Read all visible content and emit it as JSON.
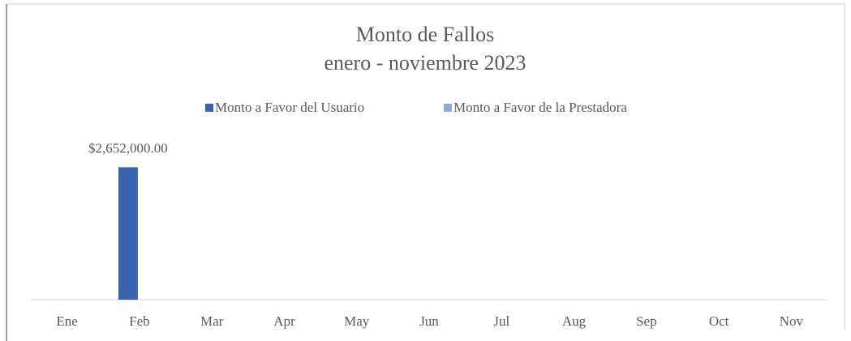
{
  "chart_data": {
    "type": "bar",
    "title": "Monto de Fallos",
    "subtitle": "enero - noviembre 2023",
    "categories": [
      "Ene",
      "Feb",
      "Mar",
      "Apr",
      "May",
      "Jun",
      "Jul",
      "Aug",
      "Sep",
      "Oct",
      "Nov"
    ],
    "series": [
      {
        "name": "Monto a Favor del Usuario",
        "color": "#3a62b0",
        "values": [
          null,
          2652000,
          null,
          null,
          null,
          null,
          null,
          null,
          null,
          null,
          null
        ],
        "value_labels": [
          null,
          "$2,652,000.00",
          null,
          null,
          null,
          null,
          null,
          null,
          null,
          null,
          null
        ]
      },
      {
        "name": "Monto a Favor de la Prestadora",
        "color": "#8faadc",
        "values": [
          null,
          null,
          null,
          null,
          null,
          null,
          null,
          null,
          null,
          null,
          null
        ]
      }
    ],
    "ylim": [
      0,
      3000000
    ],
    "legend": "top"
  }
}
